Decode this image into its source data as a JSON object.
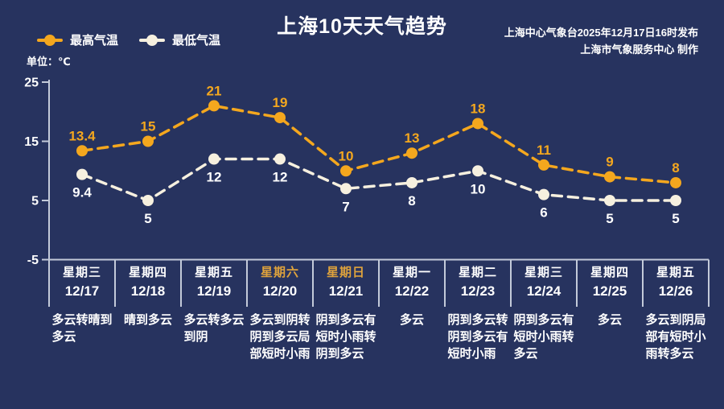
{
  "title": "上海10天天气趋势",
  "source": {
    "line1": "上海中心气象台2025年12月17日16时发布",
    "line2": "上海市气象服务中心 制作"
  },
  "unit_label": "单位：℃",
  "legend": [
    {
      "label": "最高气温",
      "color": "#F4A71E"
    },
    {
      "label": "最低气温",
      "color": "#F6F0DF"
    }
  ],
  "colors": {
    "background": "#27335F",
    "axis": "#C3CAD9",
    "text_primary": "#FFFFFF",
    "highlight_day": "#DFA33C",
    "max_series": "#F4A71E",
    "min_series": "#F6F0DF",
    "min_label": "#FFFFFF"
  },
  "chart_data": {
    "type": "line",
    "title": "上海10天天气趋势",
    "ylabel": "单位：℃",
    "ylim": [
      -5,
      25
    ],
    "yticks": [
      25,
      15,
      5,
      -5
    ],
    "grid": false,
    "legend_position": "top-left",
    "line_style": "dashed",
    "categories": [
      {
        "weekday": "星期三",
        "date": "12/17",
        "highlight": false,
        "weather": "多云转晴到多云",
        "weather_lines": [
          "多云转晴到",
          "多云"
        ]
      },
      {
        "weekday": "星期四",
        "date": "12/18",
        "highlight": false,
        "weather": "晴到多云",
        "weather_lines": [
          "晴到多云"
        ]
      },
      {
        "weekday": "星期五",
        "date": "12/19",
        "highlight": false,
        "weather": "多云转多云到阴",
        "weather_lines": [
          "多云转多云",
          "到阴"
        ]
      },
      {
        "weekday": "星期六",
        "date": "12/20",
        "highlight": true,
        "weather": "多云到阴转阴到多云局部短时小雨",
        "weather_lines": [
          "多云到阴转",
          "阴到多云局",
          "部短时小雨"
        ]
      },
      {
        "weekday": "星期日",
        "date": "12/21",
        "highlight": true,
        "weather": "阴到多云有短时小雨转阴到多云",
        "weather_lines": [
          "阴到多云有",
          "短时小雨转",
          "阴到多云"
        ]
      },
      {
        "weekday": "星期一",
        "date": "12/22",
        "highlight": false,
        "weather": "多云",
        "weather_lines": [
          "多云"
        ]
      },
      {
        "weekday": "星期二",
        "date": "12/23",
        "highlight": false,
        "weather": "阴到多云转阴到多云有短时小雨",
        "weather_lines": [
          "阴到多云转",
          "阴到多云有",
          "短时小雨"
        ]
      },
      {
        "weekday": "星期三",
        "date": "12/24",
        "highlight": false,
        "weather": "阴到多云有短时小雨转多云",
        "weather_lines": [
          "阴到多云有",
          "短时小雨转",
          "多云"
        ]
      },
      {
        "weekday": "星期四",
        "date": "12/25",
        "highlight": false,
        "weather": "多云",
        "weather_lines": [
          "多云"
        ]
      },
      {
        "weekday": "星期五",
        "date": "12/26",
        "highlight": false,
        "weather": "多云到阴局部有短时小雨转多云",
        "weather_lines": [
          "多云到阴局",
          "部有短时小",
          "雨转多云"
        ]
      }
    ],
    "series": [
      {
        "name": "最高气温",
        "color": "#F4A71E",
        "label_color": "#F4A71E",
        "label_position": "above",
        "values": [
          13.4,
          15,
          21,
          19,
          10,
          13,
          18,
          11,
          9,
          8
        ]
      },
      {
        "name": "最低气温",
        "color": "#F6F0DF",
        "label_color": "#FFFFFF",
        "label_position": "below",
        "values": [
          9.4,
          5,
          12,
          12,
          7,
          8,
          10,
          6,
          5,
          5
        ]
      }
    ]
  }
}
